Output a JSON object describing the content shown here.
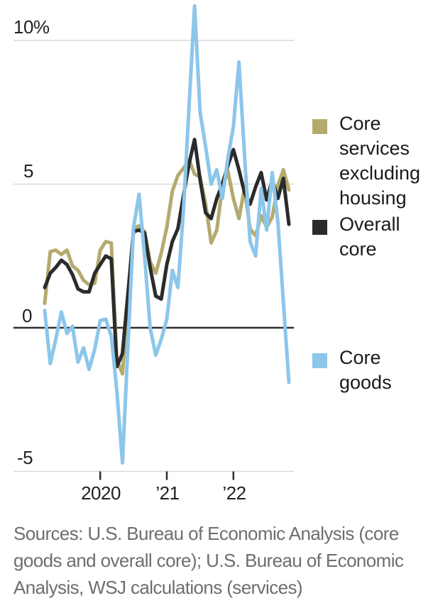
{
  "chart_data": {
    "type": "line",
    "title": "",
    "unit": "%",
    "frequency": "monthly",
    "x_start": "2019-03",
    "x_end": "2022-11",
    "grid": "horizontal",
    "zero_line": true,
    "legend_position": "right",
    "ylim": [
      -5.5,
      11.4
    ],
    "y_ticks": [
      10,
      5,
      0,
      -5
    ],
    "y_tick_labels": [
      "10%",
      "5",
      "0",
      "-5"
    ],
    "x_tick_labels": [
      "2020",
      "’21",
      "’22"
    ],
    "x_tick_month_indices": [
      10,
      22,
      34
    ],
    "grid_color": "#d9d9d9",
    "axis_color": "#2e2e2e",
    "months": [
      "2019-03",
      "2019-04",
      "2019-05",
      "2019-06",
      "2019-07",
      "2019-08",
      "2019-09",
      "2019-10",
      "2019-11",
      "2019-12",
      "2020-01",
      "2020-02",
      "2020-03",
      "2020-04",
      "2020-05",
      "2020-06",
      "2020-07",
      "2020-08",
      "2020-09",
      "2020-10",
      "2020-11",
      "2020-12",
      "2021-01",
      "2021-02",
      "2021-03",
      "2021-04",
      "2021-05",
      "2021-06",
      "2021-07",
      "2021-08",
      "2021-09",
      "2021-10",
      "2021-11",
      "2021-12",
      "2022-01",
      "2022-02",
      "2022-03",
      "2022-04",
      "2022-05",
      "2022-06",
      "2022-07",
      "2022-08",
      "2022-09",
      "2022-10",
      "2022-11"
    ],
    "series": [
      {
        "id": "core-services-excluding-housing",
        "name": "Core services excluding housing",
        "color": "#b5aa6e",
        "values": [
          0.85,
          2.65,
          2.7,
          2.55,
          2.7,
          2.15,
          2.0,
          1.65,
          1.5,
          1.55,
          2.7,
          3.0,
          2.95,
          -1.1,
          -1.6,
          0.9,
          3.45,
          3.55,
          3.35,
          2.3,
          1.9,
          2.6,
          3.5,
          4.75,
          5.3,
          5.55,
          5.85,
          5.35,
          5.25,
          4.3,
          2.95,
          3.4,
          4.9,
          5.45,
          4.5,
          3.8,
          4.85,
          3.45,
          3.2,
          3.9,
          3.5,
          3.85,
          4.95,
          5.5,
          4.8
        ]
      },
      {
        "id": "overall-core",
        "name": "Overall core",
        "color": "#2b2b2b",
        "values": [
          1.4,
          1.9,
          2.1,
          2.35,
          2.2,
          1.85,
          1.35,
          1.25,
          1.25,
          1.9,
          2.2,
          2.5,
          2.4,
          -1.35,
          -0.9,
          1.2,
          3.35,
          3.4,
          3.3,
          2.1,
          1.1,
          1.0,
          2.2,
          3.0,
          3.45,
          4.6,
          5.7,
          6.55,
          5.15,
          4.0,
          3.8,
          4.5,
          5.0,
          5.65,
          6.2,
          5.5,
          4.7,
          4.3,
          4.9,
          5.4,
          4.45,
          5.15,
          4.5,
          5.2,
          3.6
        ]
      },
      {
        "id": "core-goods",
        "name": "Core goods",
        "color": "#8cc6ea",
        "values": [
          0.6,
          -1.25,
          -0.4,
          0.55,
          -0.2,
          0.05,
          -1.2,
          -0.7,
          -1.45,
          -0.75,
          0.25,
          0.3,
          -0.3,
          -2.2,
          -4.7,
          -0.6,
          3.5,
          4.65,
          2.5,
          0.0,
          -0.95,
          -0.4,
          0.3,
          2.0,
          1.4,
          4.1,
          7.7,
          11.2,
          7.5,
          6.3,
          5.0,
          5.5,
          4.5,
          5.9,
          7.0,
          9.25,
          6.0,
          3.0,
          2.5,
          4.85,
          3.4,
          5.4,
          3.7,
          0.9,
          -1.9
        ]
      }
    ]
  },
  "footer": {
    "sources_lines": [
      "Sources: U.S. Bureau of Economic Analysis (core",
      "goods and overall core); U.S. Bureau of Economic",
      "Analysis, WSJ calculations (services)"
    ]
  }
}
